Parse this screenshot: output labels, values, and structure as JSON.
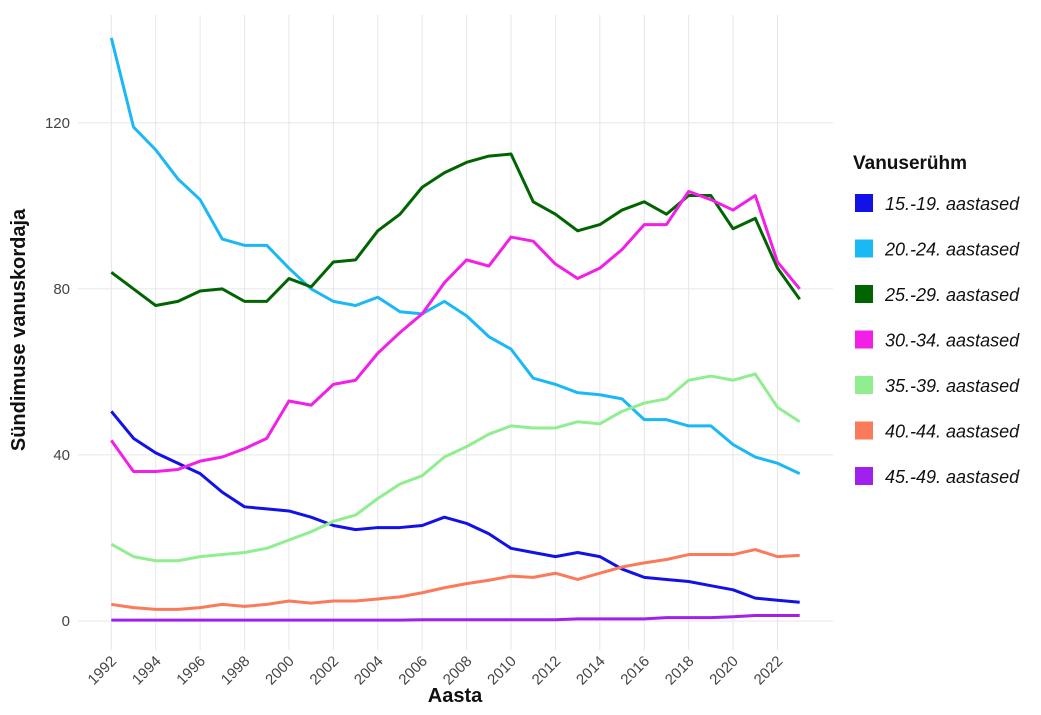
{
  "chart_data": {
    "type": "line",
    "x_label": "Aasta",
    "y_label": "Sündimuse vanuskordaja",
    "legend_title": "Vanuserühm",
    "x": [
      1992,
      1993,
      1994,
      1995,
      1996,
      1997,
      1998,
      1999,
      2000,
      2001,
      2002,
      2003,
      2004,
      2005,
      2006,
      2007,
      2008,
      2009,
      2010,
      2011,
      2012,
      2013,
      2014,
      2015,
      2016,
      2017,
      2018,
      2019,
      2020,
      2021,
      2022,
      2023
    ],
    "xlim": [
      1990.5,
      2024.5
    ],
    "xticks": [
      1992,
      1994,
      1996,
      1998,
      2000,
      2002,
      2004,
      2006,
      2008,
      2010,
      2012,
      2014,
      2016,
      2018,
      2020,
      2022
    ],
    "ylim": [
      -7,
      146
    ],
    "yticks": [
      0,
      40,
      80,
      120
    ],
    "grid": true,
    "legend": "right",
    "series": [
      {
        "name": "15.-19. aastased",
        "color": "#1111e8",
        "values": [
          50.5,
          44,
          40.5,
          38,
          35.5,
          31,
          27.5,
          27,
          26.5,
          25,
          23,
          22,
          22.5,
          22.5,
          23,
          25,
          23.5,
          21,
          17.5,
          16.5,
          15.5,
          16.5,
          15.5,
          12.5,
          10.5,
          10,
          9.5,
          8.5,
          7.5,
          5.5,
          5,
          4.5
        ]
      },
      {
        "name": "20.-24. aastased",
        "color": "#1ab8f5",
        "values": [
          140.5,
          119,
          113.5,
          106.5,
          101.5,
          92,
          90.5,
          90.5,
          85,
          80,
          77,
          76,
          78,
          74.5,
          74,
          77,
          73.5,
          68.5,
          65.5,
          58.5,
          57,
          55,
          54.5,
          53.5,
          48.5,
          48.5,
          47,
          47,
          42.5,
          39.5,
          38,
          35.5
        ]
      },
      {
        "name": "25.-29. aastased",
        "color": "#006400",
        "values": [
          84,
          80,
          76,
          77,
          79.5,
          80,
          77,
          77,
          82.5,
          80.5,
          86.5,
          87,
          94,
          98,
          104.5,
          108,
          110.5,
          112,
          112.5,
          101,
          98,
          94,
          95.5,
          99,
          101,
          98,
          102.5,
          102.5,
          94.5,
          97,
          85,
          77.5
        ]
      },
      {
        "name": "30.-34. aastased",
        "color": "#f21fe6",
        "values": [
          43.5,
          36,
          36,
          36.5,
          38.5,
          39.5,
          41.5,
          44,
          53,
          52,
          57,
          58,
          64.5,
          69.5,
          74,
          81.5,
          87,
          85.5,
          92.5,
          91.5,
          86,
          82.5,
          85,
          89.5,
          95.5,
          95.5,
          103.5,
          101.5,
          99,
          102.5,
          86.5,
          80
        ]
      },
      {
        "name": "35.-39. aastased",
        "color": "#90ee90",
        "values": [
          18.5,
          15.5,
          14.5,
          14.5,
          15.5,
          16,
          16.5,
          17.5,
          19.5,
          21.5,
          24,
          25.5,
          29.5,
          33,
          35,
          39.5,
          42,
          45,
          47,
          46.5,
          46.5,
          48,
          47.5,
          50.5,
          52.5,
          53.5,
          58,
          59,
          58,
          59.5,
          51.5,
          48
        ]
      },
      {
        "name": "40.-44. aastased",
        "color": "#fa7a5a",
        "values": [
          4,
          3.2,
          2.8,
          2.8,
          3.2,
          4,
          3.5,
          4,
          4.8,
          4.3,
          4.8,
          4.8,
          5.3,
          5.8,
          6.8,
          8,
          9,
          9.8,
          10.8,
          10.5,
          11.5,
          10,
          11.5,
          13,
          14,
          14.8,
          16,
          16,
          16,
          17.2,
          15.5,
          15.8
        ]
      },
      {
        "name": "45.-49. aastased",
        "color": "#a020f0",
        "values": [
          0.2,
          0.2,
          0.2,
          0.2,
          0.2,
          0.2,
          0.2,
          0.2,
          0.2,
          0.2,
          0.2,
          0.2,
          0.2,
          0.2,
          0.3,
          0.3,
          0.3,
          0.3,
          0.3,
          0.3,
          0.3,
          0.5,
          0.5,
          0.5,
          0.5,
          0.8,
          0.8,
          0.8,
          1,
          1.3,
          1.3,
          1.3
        ]
      }
    ]
  }
}
